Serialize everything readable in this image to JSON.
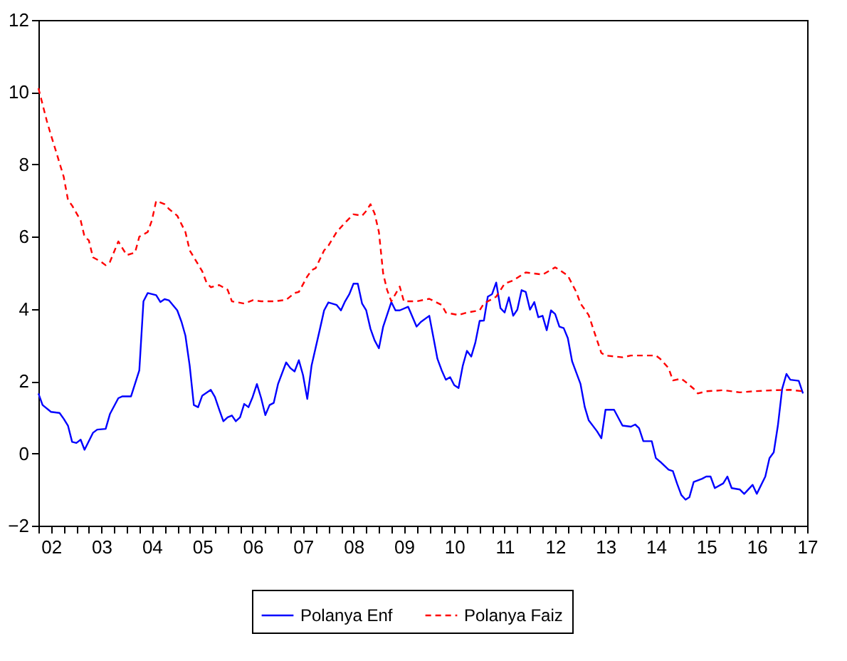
{
  "chart_data": {
    "type": "line",
    "xlim": [
      "2002-04",
      "2017-07"
    ],
    "xticks": [
      {
        "value": "2002-04",
        "label": null
      },
      {
        "value": "2002-07",
        "label": "02"
      },
      {
        "value": "2002-10",
        "label": null
      },
      {
        "value": "2003-01",
        "label": null
      },
      {
        "value": "2003-04",
        "label": null
      },
      {
        "value": "2003-07",
        "label": "03"
      },
      {
        "value": "2003-10",
        "label": null
      },
      {
        "value": "2004-01",
        "label": null
      },
      {
        "value": "2004-04",
        "label": null
      },
      {
        "value": "2004-07",
        "label": "04"
      },
      {
        "value": "2004-10",
        "label": null
      },
      {
        "value": "2005-01",
        "label": null
      },
      {
        "value": "2005-04",
        "label": null
      },
      {
        "value": "2005-07",
        "label": "05"
      },
      {
        "value": "2005-10",
        "label": null
      },
      {
        "value": "2006-01",
        "label": null
      },
      {
        "value": "2006-04",
        "label": null
      },
      {
        "value": "2006-07",
        "label": "06"
      },
      {
        "value": "2006-10",
        "label": null
      },
      {
        "value": "2007-01",
        "label": null
      },
      {
        "value": "2007-04",
        "label": null
      },
      {
        "value": "2007-07",
        "label": "07"
      },
      {
        "value": "2007-10",
        "label": null
      },
      {
        "value": "2008-01",
        "label": null
      },
      {
        "value": "2008-04",
        "label": null
      },
      {
        "value": "2008-07",
        "label": "08"
      },
      {
        "value": "2008-10",
        "label": null
      },
      {
        "value": "2009-01",
        "label": null
      },
      {
        "value": "2009-04",
        "label": null
      },
      {
        "value": "2009-07",
        "label": "09"
      },
      {
        "value": "2009-10",
        "label": null
      },
      {
        "value": "2010-01",
        "label": null
      },
      {
        "value": "2010-04",
        "label": null
      },
      {
        "value": "2010-07",
        "label": "10"
      },
      {
        "value": "2010-10",
        "label": null
      },
      {
        "value": "2011-01",
        "label": null
      },
      {
        "value": "2011-04",
        "label": null
      },
      {
        "value": "2011-07",
        "label": "11"
      },
      {
        "value": "2011-10",
        "label": null
      },
      {
        "value": "2012-01",
        "label": null
      },
      {
        "value": "2012-04",
        "label": null
      },
      {
        "value": "2012-07",
        "label": "12"
      },
      {
        "value": "2012-10",
        "label": null
      },
      {
        "value": "2013-01",
        "label": null
      },
      {
        "value": "2013-04",
        "label": null
      },
      {
        "value": "2013-07",
        "label": "13"
      },
      {
        "value": "2013-10",
        "label": null
      },
      {
        "value": "2014-01",
        "label": null
      },
      {
        "value": "2014-04",
        "label": null
      },
      {
        "value": "2014-07",
        "label": "14"
      },
      {
        "value": "2014-10",
        "label": null
      },
      {
        "value": "2015-01",
        "label": null
      },
      {
        "value": "2015-04",
        "label": null
      },
      {
        "value": "2015-07",
        "label": "15"
      },
      {
        "value": "2015-10",
        "label": null
      },
      {
        "value": "2016-01",
        "label": null
      },
      {
        "value": "2016-04",
        "label": null
      },
      {
        "value": "2016-07",
        "label": "16"
      },
      {
        "value": "2016-10",
        "label": null
      },
      {
        "value": "2017-01",
        "label": null
      },
      {
        "value": "2017-04",
        "label": null
      },
      {
        "value": "2017-07",
        "label": "17"
      }
    ],
    "ylim": [
      -2,
      12
    ],
    "yticks": [
      -2,
      0,
      2,
      4,
      6,
      8,
      10,
      12
    ],
    "grid": false,
    "legend": "bottom",
    "series": [
      {
        "name": "Polanya Enf",
        "color": "#0000ff",
        "line_style": "solid",
        "x": [
          "2002-04",
          "2002-05",
          "2002-07",
          "2002-09",
          "2002-10",
          "2002-11",
          "2002-12",
          "2003-01",
          "2003-02",
          "2003-03",
          "2003-05",
          "2003-06",
          "2003-08",
          "2003-09",
          "2003-11",
          "2003-12",
          "2004-02",
          "2004-04",
          "2004-05",
          "2004-06",
          "2004-08",
          "2004-09",
          "2004-10",
          "2004-11",
          "2005-01",
          "2005-02",
          "2005-03",
          "2005-04",
          "2005-05",
          "2005-06",
          "2005-07",
          "2005-09",
          "2005-10",
          "2005-11",
          "2005-12",
          "2006-01",
          "2006-02",
          "2006-03",
          "2006-04",
          "2006-05",
          "2006-06",
          "2006-07",
          "2006-08",
          "2006-09",
          "2006-10",
          "2006-11",
          "2006-12",
          "2007-01",
          "2007-03",
          "2007-04",
          "2007-05",
          "2007-06",
          "2007-07",
          "2007-08",
          "2007-09",
          "2007-11",
          "2007-12",
          "2008-01",
          "2008-03",
          "2008-04",
          "2008-05",
          "2008-06",
          "2008-07",
          "2008-08",
          "2008-09",
          "2008-10",
          "2008-11",
          "2008-12",
          "2009-01",
          "2009-02",
          "2009-04",
          "2009-05",
          "2009-06",
          "2009-08",
          "2009-10",
          "2009-11",
          "2010-01",
          "2010-02",
          "2010-03",
          "2010-04",
          "2010-05",
          "2010-06",
          "2010-07",
          "2010-08",
          "2010-09",
          "2010-10",
          "2010-11",
          "2010-12",
          "2011-01",
          "2011-02",
          "2011-03",
          "2011-04",
          "2011-05",
          "2011-06",
          "2011-07",
          "2011-08",
          "2011-09",
          "2011-10",
          "2011-11",
          "2011-12",
          "2012-01",
          "2012-02",
          "2012-03",
          "2012-04",
          "2012-05",
          "2012-06",
          "2012-07",
          "2012-08",
          "2012-09",
          "2012-10",
          "2012-11",
          "2013-01",
          "2013-02",
          "2013-03",
          "2013-05",
          "2013-06",
          "2013-07",
          "2013-09",
          "2013-11",
          "2014-01",
          "2014-02",
          "2014-03",
          "2014-04",
          "2014-06",
          "2014-07",
          "2014-08",
          "2014-10",
          "2014-11",
          "2014-12",
          "2015-01",
          "2015-02",
          "2015-03",
          "2015-04",
          "2015-06",
          "2015-07",
          "2015-08",
          "2015-09",
          "2015-11",
          "2015-12",
          "2016-01",
          "2016-03",
          "2016-04",
          "2016-06",
          "2016-07",
          "2016-09",
          "2016-10",
          "2016-11",
          "2016-12",
          "2017-01",
          "2017-02",
          "2017-03",
          "2017-05",
          "2017-06"
        ],
        "values": [
          1.66,
          1.34,
          1.15,
          1.12,
          0.96,
          0.77,
          0.32,
          0.29,
          0.38,
          0.1,
          0.57,
          0.66,
          0.68,
          1.09,
          1.53,
          1.58,
          1.58,
          2.3,
          4.21,
          4.44,
          4.38,
          4.19,
          4.27,
          4.24,
          3.96,
          3.64,
          3.26,
          2.43,
          1.34,
          1.28,
          1.6,
          1.76,
          1.56,
          1.21,
          0.89,
          1.0,
          1.05,
          0.89,
          1.0,
          1.37,
          1.28,
          1.56,
          1.92,
          1.53,
          1.06,
          1.34,
          1.4,
          1.92,
          2.52,
          2.36,
          2.27,
          2.58,
          2.17,
          1.51,
          2.43,
          3.45,
          3.96,
          4.18,
          4.11,
          3.96,
          4.21,
          4.41,
          4.7,
          4.7,
          4.15,
          3.96,
          3.45,
          3.13,
          2.91,
          3.51,
          4.19,
          3.96,
          3.96,
          4.06,
          3.51,
          3.64,
          3.81,
          3.19,
          2.62,
          2.3,
          2.04,
          2.11,
          1.89,
          1.81,
          2.43,
          2.84,
          2.68,
          3.07,
          3.67,
          3.68,
          4.34,
          4.41,
          4.73,
          4.02,
          3.9,
          4.32,
          3.81,
          3.98,
          4.52,
          4.47,
          3.98,
          4.19,
          3.77,
          3.81,
          3.41,
          3.96,
          3.86,
          3.51,
          3.47,
          3.19,
          2.55,
          1.92,
          1.28,
          0.92,
          0.61,
          0.42,
          1.21,
          1.21,
          0.77,
          0.74,
          0.8,
          0.7,
          0.34,
          0.34,
          -0.13,
          -0.23,
          -0.45,
          -0.49,
          -0.83,
          -1.15,
          -1.28,
          -1.21,
          -0.79,
          -0.7,
          -0.64,
          -0.64,
          -0.96,
          -0.83,
          -0.64,
          -0.96,
          -1.0,
          -1.12,
          -0.87,
          -1.12,
          -0.64,
          -0.13,
          0.03,
          0.77,
          1.79,
          2.2,
          2.04,
          2.01,
          1.66
        ]
      },
      {
        "name": "Polanya Faiz",
        "color": "#ff0000",
        "line_style": "dashed",
        "x": [
          "2002-04",
          "2002-06",
          "2002-07",
          "2002-08",
          "2002-10",
          "2002-11",
          "2002-12",
          "2003-02",
          "2003-03",
          "2003-04",
          "2003-05",
          "2003-07",
          "2003-08",
          "2003-09",
          "2003-11",
          "2003-12",
          "2004-01",
          "2004-03",
          "2004-04",
          "2004-06",
          "2004-07",
          "2004-08",
          "2004-10",
          "2004-11",
          "2005-01",
          "2005-03",
          "2005-04",
          "2005-05",
          "2005-07",
          "2005-08",
          "2005-09",
          "2005-11",
          "2006-01",
          "2006-02",
          "2006-05",
          "2006-07",
          "2006-09",
          "2006-12",
          "2007-03",
          "2007-05",
          "2007-06",
          "2007-08",
          "2007-09",
          "2007-10",
          "2007-12",
          "2008-01",
          "2008-03",
          "2008-05",
          "2008-07",
          "2008-09",
          "2008-10",
          "2008-11",
          "2008-12",
          "2009-01",
          "2009-02",
          "2009-03",
          "2009-04",
          "2009-06",
          "2009-07",
          "2009-10",
          "2010-01",
          "2010-04",
          "2010-05",
          "2010-08",
          "2010-10",
          "2011-01",
          "2011-02",
          "2011-05",
          "2011-07",
          "2011-09",
          "2011-12",
          "2012-02",
          "2012-04",
          "2012-07",
          "2012-08",
          "2012-10",
          "2012-12",
          "2013-01",
          "2013-03",
          "2013-05",
          "2013-06",
          "2013-07",
          "2013-11",
          "2014-01",
          "2014-04",
          "2014-07",
          "2014-08",
          "2014-10",
          "2014-11",
          "2015-01",
          "2015-02",
          "2015-04",
          "2015-05",
          "2015-07",
          "2015-11",
          "2016-03",
          "2016-06",
          "2016-11",
          "2017-03",
          "2017-06"
        ],
        "values": [
          10.11,
          9.2,
          8.81,
          8.43,
          7.66,
          7.02,
          6.86,
          6.45,
          6.0,
          5.9,
          5.43,
          5.3,
          5.21,
          5.3,
          5.87,
          5.68,
          5.49,
          5.56,
          6.0,
          6.13,
          6.45,
          6.99,
          6.9,
          6.77,
          6.58,
          6.13,
          5.62,
          5.43,
          5.04,
          4.73,
          4.6,
          4.66,
          4.53,
          4.21,
          4.15,
          4.24,
          4.21,
          4.21,
          4.25,
          4.44,
          4.47,
          4.9,
          5.07,
          5.13,
          5.62,
          5.75,
          6.13,
          6.39,
          6.62,
          6.58,
          6.71,
          6.9,
          6.64,
          6.13,
          4.98,
          4.53,
          4.21,
          4.62,
          4.21,
          4.21,
          4.28,
          4.11,
          3.9,
          3.83,
          3.9,
          3.96,
          4.15,
          4.34,
          4.7,
          4.79,
          5.01,
          4.98,
          4.95,
          5.15,
          5.08,
          4.92,
          4.47,
          4.15,
          3.83,
          3.13,
          2.78,
          2.71,
          2.66,
          2.71,
          2.71,
          2.71,
          2.62,
          2.36,
          2.02,
          2.07,
          1.98,
          1.79,
          1.66,
          1.72,
          1.75,
          1.69,
          1.72,
          1.75,
          1.76,
          1.72
        ]
      }
    ]
  }
}
